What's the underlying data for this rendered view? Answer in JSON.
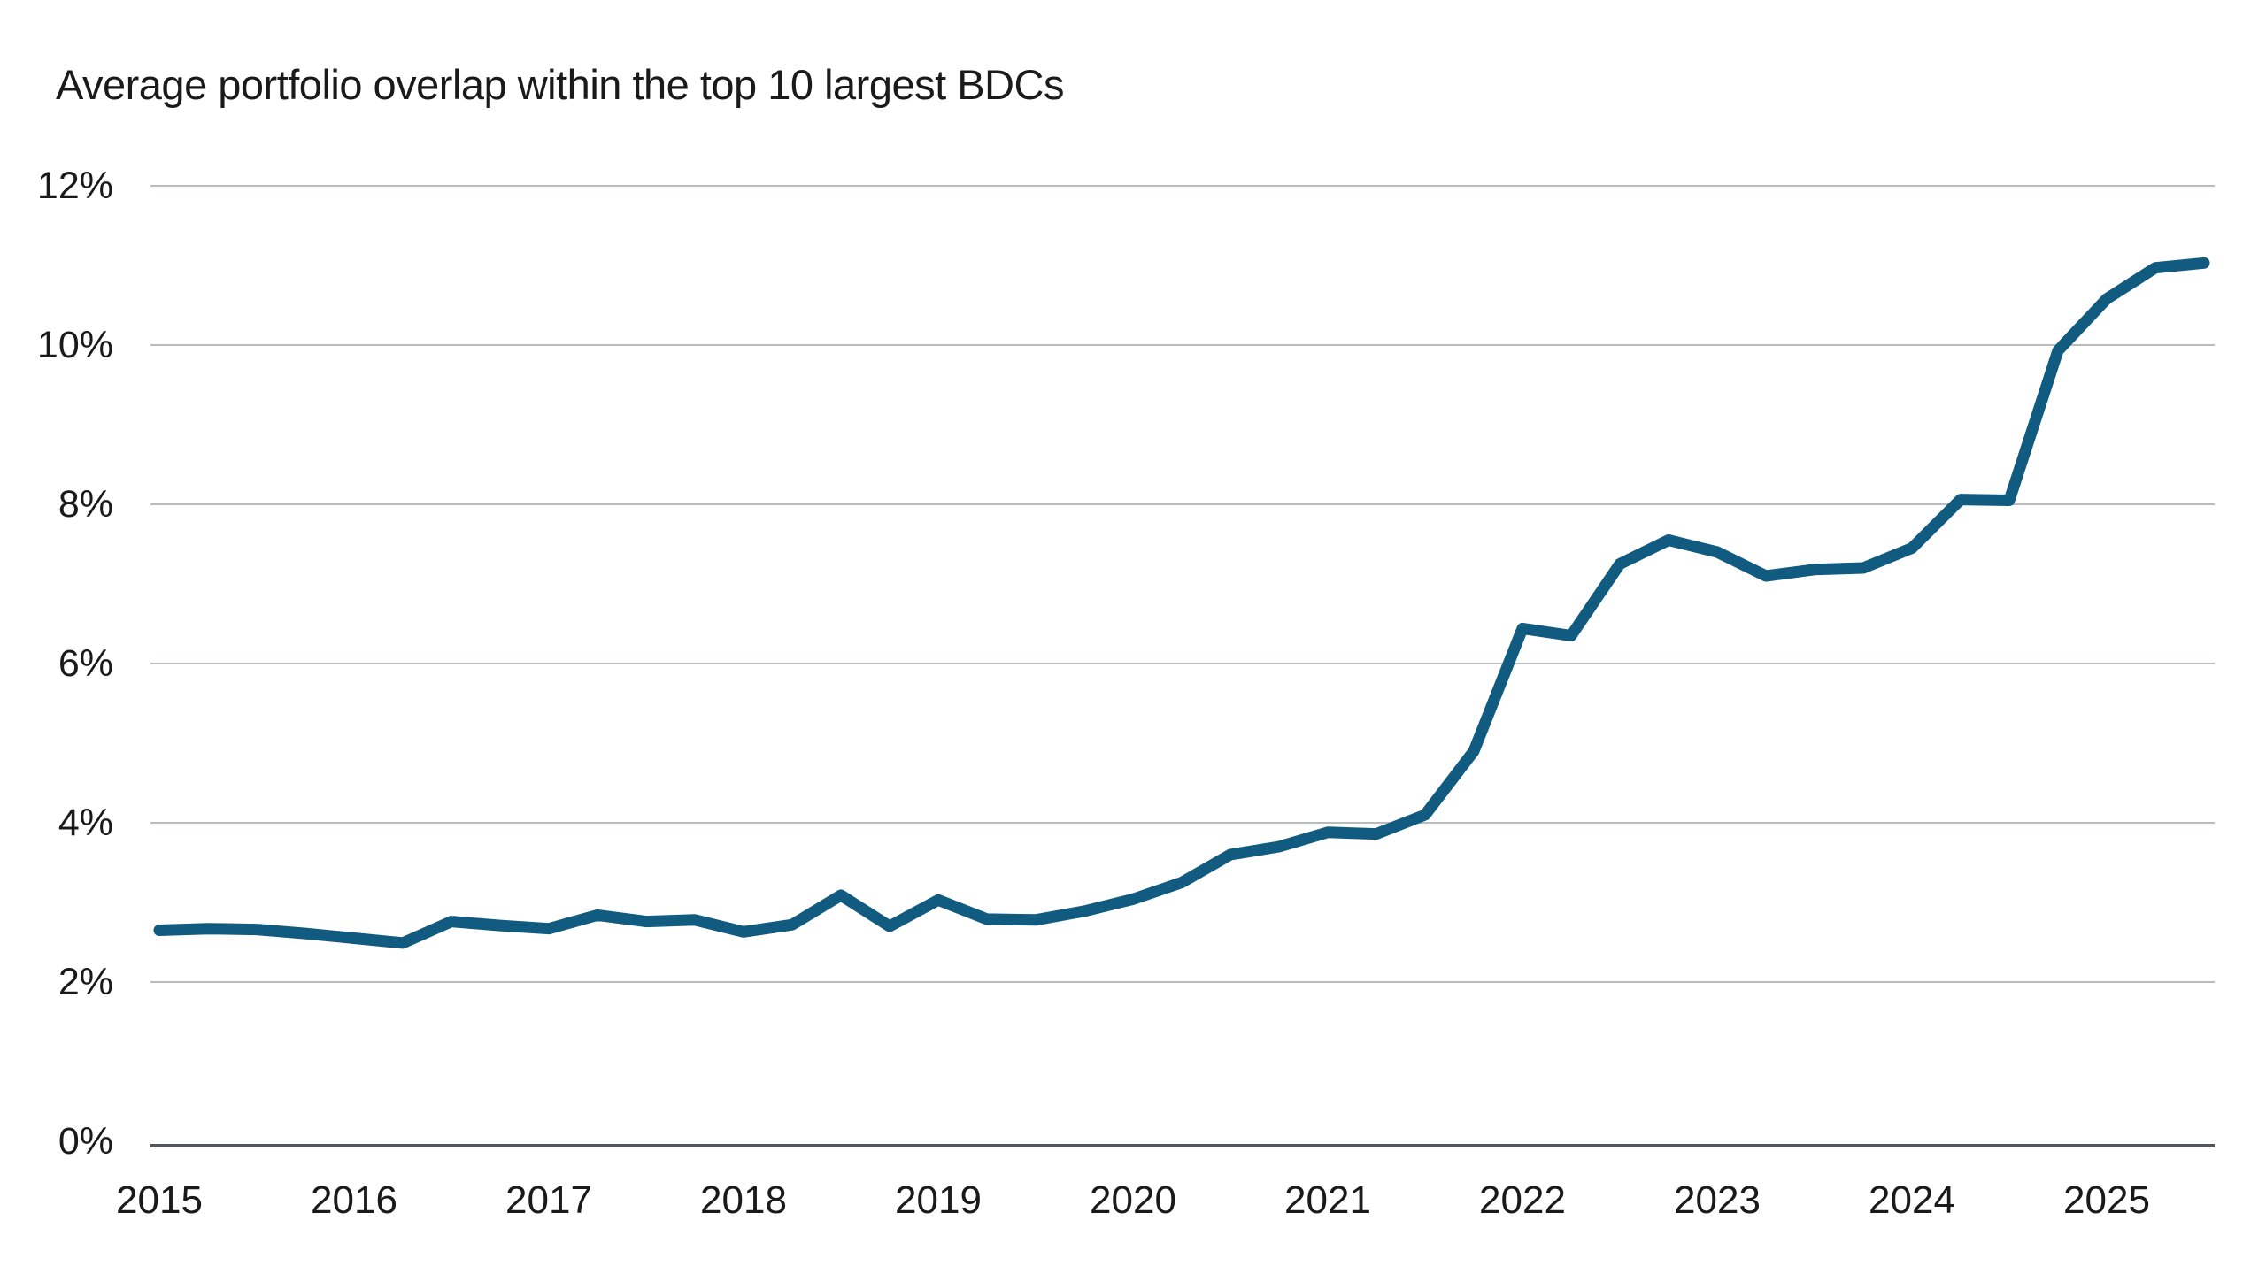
{
  "title": "Average portfolio overlap within the top 10 largest BDCs",
  "chart_data": {
    "type": "line",
    "title": "Average portfolio overlap within the top 10 largest BDCs",
    "xlabel": "",
    "ylabel": "",
    "legend": "none",
    "grid": "horizontal",
    "ylim": [
      0,
      12
    ],
    "y_tick_labels": [
      "0%",
      "2%",
      "4%",
      "6%",
      "8%",
      "10%",
      "12%"
    ],
    "y_tick_values": [
      0,
      2,
      4,
      6,
      8,
      10,
      12
    ],
    "x_tick_labels": [
      "2015",
      "2016",
      "2017",
      "2018",
      "2019",
      "2020",
      "2021",
      "2022",
      "2023",
      "2024",
      "2025"
    ],
    "x_frequency": "quarterly",
    "start_period": "2015 Q1",
    "end_period": "2025 Q3",
    "series": [
      {
        "name": "Average portfolio overlap (%)",
        "values": [
          2.65,
          2.67,
          2.66,
          2.61,
          2.55,
          2.49,
          2.76,
          2.71,
          2.67,
          2.84,
          2.76,
          2.78,
          2.63,
          2.72,
          3.09,
          2.7,
          3.03,
          2.79,
          2.78,
          2.89,
          3.04,
          3.25,
          3.6,
          3.7,
          3.88,
          3.86,
          4.1,
          4.9,
          6.44,
          6.35,
          7.25,
          7.55,
          7.4,
          7.1,
          7.18,
          7.2,
          7.45,
          8.06,
          8.05,
          9.93,
          10.58,
          10.97,
          11.03
        ]
      }
    ],
    "colors": {
      "line": "#115a80",
      "gridline": "#b9bcbe",
      "axis_line": "#54575b",
      "text": "#1a1a1a",
      "background": "#ffffff"
    }
  }
}
